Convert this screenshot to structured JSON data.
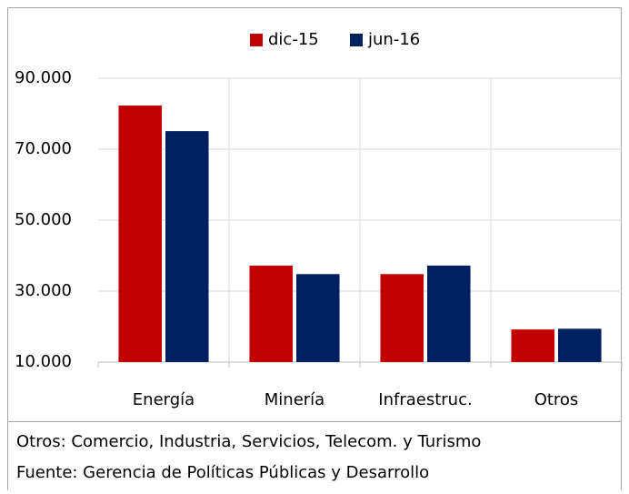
{
  "chart_data": {
    "type": "bar",
    "categories": [
      "Energía",
      "Minería",
      "Infraestruc.",
      "Otros"
    ],
    "series": [
      {
        "name": "dic-15",
        "color": "#c00000",
        "values": [
          82300,
          37200,
          34800,
          19200
        ]
      },
      {
        "name": "jun-16",
        "color": "#002060",
        "values": [
          75100,
          34800,
          37200,
          19400
        ]
      }
    ],
    "ylim": [
      10000,
      90000
    ],
    "yticks": [
      {
        "value": 10000,
        "label": "10.000"
      },
      {
        "value": 30000,
        "label": "30.000"
      },
      {
        "value": 50000,
        "label": "50.000"
      },
      {
        "value": 70000,
        "label": "70.000"
      },
      {
        "value": 90000,
        "label": "90.000"
      }
    ],
    "grid": true,
    "legend": "top"
  },
  "notes": [
    "Otros: Comercio, Industria, Servicios, Telecom. y Turismo",
    "Fuente: Gerencia de Políticas Públicas y Desarrollo"
  ]
}
